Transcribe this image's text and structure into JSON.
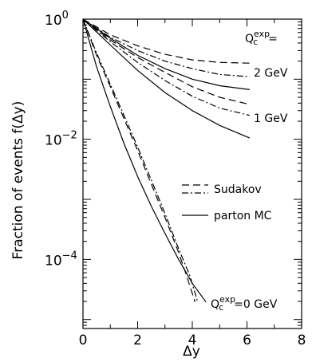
{
  "chart_data": {
    "type": "line",
    "title": "",
    "xlabel": "Δy",
    "ylabel": "Fraction of events f(Δy)",
    "xlim": [
      0,
      8
    ],
    "ylim_log10": [
      -5.15,
      0
    ],
    "y_scale": "log",
    "grid": false,
    "x_ticks": [
      {
        "value": 0,
        "label": "0"
      },
      {
        "value": 2,
        "label": "2"
      },
      {
        "value": 4,
        "label": "4"
      },
      {
        "value": 6,
        "label": "6"
      },
      {
        "value": 8,
        "label": "8"
      }
    ],
    "y_ticks": [
      {
        "value": 0,
        "base": "10",
        "exp": "0"
      },
      {
        "value": -2,
        "base": "10",
        "exp": "−2"
      },
      {
        "value": -4,
        "base": "10",
        "exp": "−4"
      }
    ],
    "legend": {
      "placement": "center-right",
      "entries": [
        {
          "style": "long-dash",
          "label": ""
        },
        {
          "style": "dash-dot",
          "label": "Sudakov"
        },
        {
          "style": "solid",
          "label": "parton MC"
        }
      ]
    },
    "annotations": {
      "q_header": {
        "base": "Q",
        "sub": "c",
        "sup": "exp",
        "suffix": "="
      },
      "q_2": "2  GeV",
      "q_1": "1  GeV",
      "q_0": {
        "base": "Q",
        "sub": "c",
        "sup": "exp",
        "suffix": "=0  GeV"
      }
    },
    "series": [
      {
        "group": "Q=2 GeV",
        "style": "long-dash",
        "x": [
          0,
          1,
          2,
          3,
          4,
          5,
          6.1
        ],
        "y": [
          1.0,
          0.55,
          0.36,
          0.26,
          0.21,
          0.19,
          0.185
        ]
      },
      {
        "group": "Q=2 GeV",
        "style": "dash-dot",
        "x": [
          0,
          1,
          2,
          3,
          4,
          5,
          6.1
        ],
        "y": [
          1.0,
          0.5,
          0.3,
          0.2,
          0.15,
          0.12,
          0.11
        ]
      },
      {
        "group": "Q=2 GeV",
        "style": "solid",
        "x": [
          0,
          1,
          2,
          3,
          4,
          5,
          6.1
        ],
        "y": [
          1.0,
          0.48,
          0.25,
          0.15,
          0.1,
          0.078,
          0.067
        ]
      },
      {
        "group": "Q=1 GeV",
        "style": "long-dash",
        "x": [
          0,
          1,
          2,
          3,
          4,
          5,
          6.1
        ],
        "y": [
          1.0,
          0.45,
          0.23,
          0.13,
          0.075,
          0.05,
          0.038
        ]
      },
      {
        "group": "Q=1 GeV",
        "style": "dash-dot",
        "x": [
          0,
          1,
          2,
          3,
          4,
          5,
          6.1
        ],
        "y": [
          1.0,
          0.42,
          0.19,
          0.095,
          0.052,
          0.033,
          0.025
        ]
      },
      {
        "group": "Q=1 GeV",
        "style": "solid",
        "x": [
          0,
          1,
          2,
          3,
          4,
          5,
          6.1
        ],
        "y": [
          1.0,
          0.37,
          0.14,
          0.06,
          0.03,
          0.017,
          0.0105
        ]
      },
      {
        "group": "Q=0 GeV",
        "style": "long-dash",
        "x": [
          0,
          0.5,
          1,
          1.5,
          2,
          2.5,
          3,
          3.5,
          3.8,
          4.1
        ],
        "y": [
          1.0,
          0.25,
          0.075,
          0.022,
          0.0065,
          0.0018,
          0.0005,
          0.00013,
          5.2e-05,
          1.95e-05
        ]
      },
      {
        "group": "Q=0 GeV",
        "style": "dash-dot",
        "x": [
          0,
          0.5,
          1,
          1.5,
          2,
          2.5,
          3,
          3.5,
          3.9,
          4.2
        ],
        "y": [
          1.0,
          0.27,
          0.082,
          0.025,
          0.0074,
          0.0021,
          0.00058,
          0.00015,
          5.5e-05,
          1.95e-05
        ]
      },
      {
        "group": "Q=0 GeV",
        "style": "solid",
        "x": [
          0,
          0.5,
          1,
          1.5,
          2,
          2.5,
          3,
          3.5,
          4,
          4.5
        ],
        "y": [
          1.0,
          0.16,
          0.035,
          0.0085,
          0.0024,
          0.00077,
          0.00027,
          0.0001,
          4e-05,
          1.95e-05
        ]
      }
    ]
  }
}
